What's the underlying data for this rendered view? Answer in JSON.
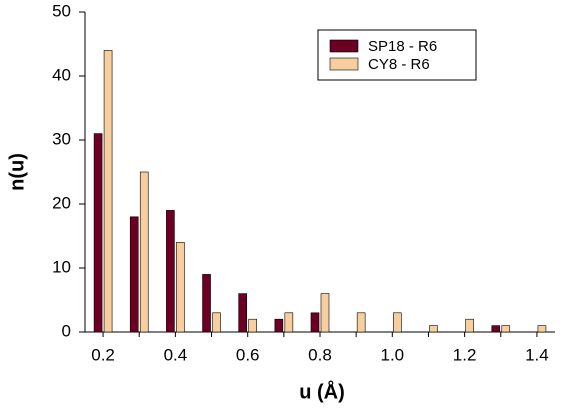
{
  "chart_data": {
    "type": "bar",
    "xlabel": "u (Å)",
    "ylabel": "n(u)",
    "categories": [
      "0.2",
      null,
      "0.4",
      null,
      "0.6",
      null,
      "0.8",
      null,
      "1.0",
      null,
      "1.2",
      null,
      "1.4"
    ],
    "series": [
      {
        "name": "SP18 - R6",
        "color": "#6b0022",
        "values": [
          31,
          18,
          19,
          9,
          6,
          2,
          3,
          0,
          0,
          0,
          0,
          1,
          0
        ]
      },
      {
        "name": "CY8 - R6",
        "color": "#f7cf9f",
        "values": [
          44,
          25,
          14,
          3,
          2,
          3,
          6,
          3,
          3,
          1,
          2,
          1,
          1
        ]
      }
    ],
    "ylim": [
      0,
      50
    ],
    "yticks": [
      0,
      10,
      20,
      30,
      40,
      50
    ],
    "grid": false,
    "legend": "upper right"
  }
}
